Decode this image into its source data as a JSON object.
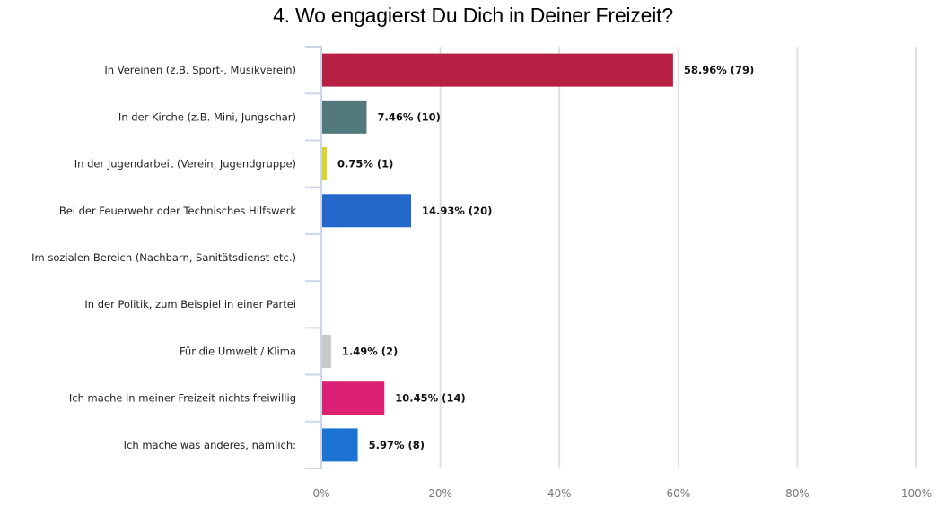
{
  "chart_data": {
    "type": "bar",
    "orientation": "horizontal",
    "title": "4. Wo engagierst Du Dich in Deiner Freizeit?",
    "xlabel": "",
    "ylabel": "",
    "xlim": [
      0,
      100
    ],
    "x_ticks": [
      0,
      20,
      40,
      60,
      80,
      100
    ],
    "x_tick_labels": [
      "0%",
      "20%",
      "40%",
      "60%",
      "80%",
      "100%"
    ],
    "grid": true,
    "legend": "none",
    "categories": [
      "In Vereinen (z.B. Sport-, Musikverein)",
      "In der Kirche (z.B. Mini, Jungschar)",
      "In der Jugendarbeit (Verein, Jugendgruppe)",
      "Bei der Feuerwehr oder Technisches Hilfswerk",
      "Im sozialen Bereich (Nachbarn, Sanitätsdienst etc.)",
      "In der Politik, zum Beispiel in einer Partei",
      "Für die Umwelt / Klima",
      "Ich mache in meiner Freizeit nichts freiwillig",
      "Ich mache was anderes, nämlich:"
    ],
    "values": [
      58.96,
      7.46,
      0.75,
      14.93,
      0,
      0,
      1.49,
      10.45,
      5.97
    ],
    "counts": [
      79,
      10,
      1,
      20,
      0,
      0,
      2,
      14,
      8
    ],
    "data_labels": [
      "58.96% (79)",
      "7.46% (10)",
      "0.75% (1)",
      "14.93% (20)",
      "",
      "",
      "1.49% (2)",
      "10.45% (14)",
      "5.97% (8)"
    ],
    "colors": [
      "#b72042",
      "#52797b",
      "#d9d42a",
      "#2468cc",
      "#999999",
      "#999999",
      "#c8c8c8",
      "#dc2174",
      "#1d73d3"
    ]
  }
}
